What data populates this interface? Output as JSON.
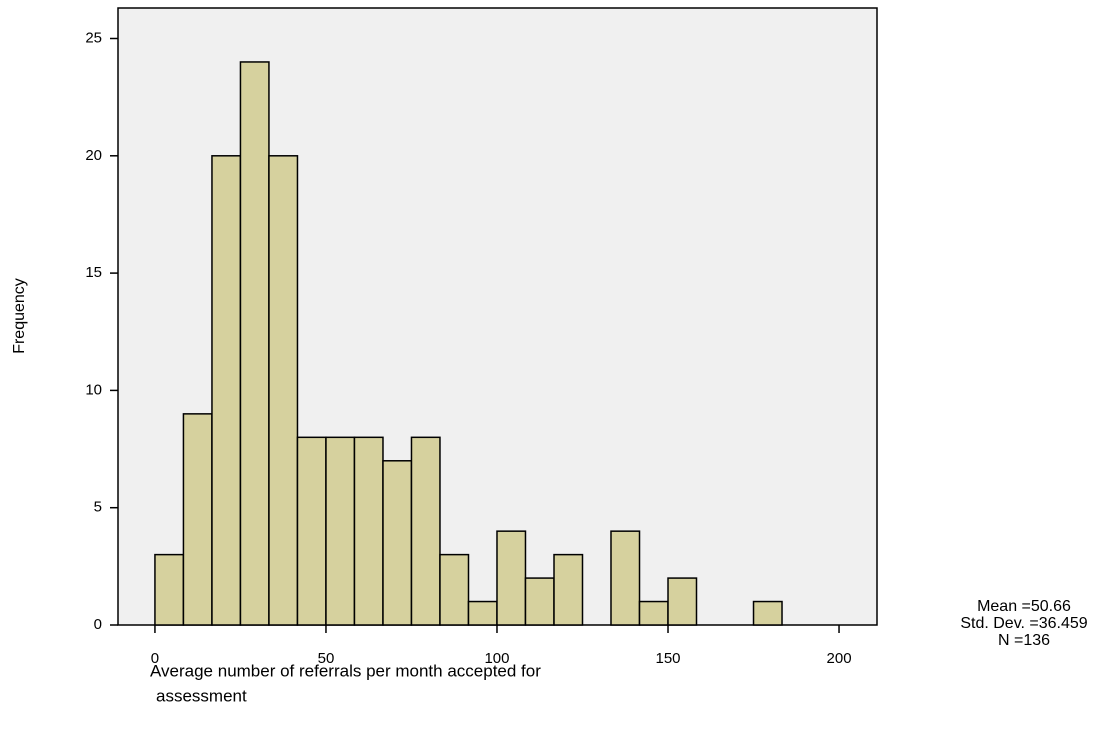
{
  "chart_data": {
    "type": "histogram",
    "y_label": "Frequency",
    "x_label_lines": [
      "Average number of referrals per month accepted for",
      "assessment"
    ],
    "bins": [
      0,
      8.33,
      16.67,
      25,
      33.33,
      41.67,
      50,
      58.33,
      66.67,
      75,
      83.33,
      91.67,
      100,
      108.33,
      116.67,
      125,
      133.33,
      141.67,
      150,
      158.33,
      166.67,
      175,
      183.33
    ],
    "values": [
      3,
      9,
      20,
      24,
      20,
      8,
      8,
      8,
      7,
      8,
      3,
      1,
      4,
      2,
      3,
      0,
      4,
      1,
      2,
      0,
      0,
      1
    ],
    "color": "#d6d19e",
    "xlim": [
      -10.8,
      211.1
    ],
    "xticks": [
      0,
      50,
      100,
      150,
      200
    ],
    "ylim": [
      0,
      26.3
    ],
    "yticks": [
      0,
      5,
      10,
      15,
      20,
      25
    ],
    "stats": [
      "Mean =50.66",
      "Std. Dev. =36.459",
      "N =136"
    ]
  }
}
